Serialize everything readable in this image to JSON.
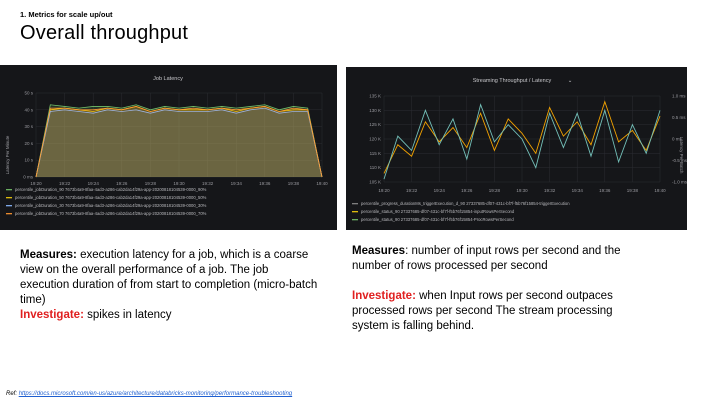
{
  "header": {
    "kicker": "1. Metrics for scale up/out",
    "title": "Overall throughput"
  },
  "panels": [
    {
      "title": "Job Latency",
      "title_suffix": "",
      "y_axis_label": "Latency Per Minute",
      "y_ticks": [
        "50 s",
        "40 s",
        "30 s",
        "20 s",
        "10 s",
        "0 ms"
      ],
      "x_ticks": [
        "19:20",
        "19:22",
        "19:24",
        "19:26",
        "19:28",
        "19:30",
        "19:32",
        "19:34",
        "19:36",
        "19:38",
        "19:40"
      ],
      "legend": [
        {
          "label": "percentile_jobDuration_90 7673b4a9-8faa-4ad3-a286-cab2da14f29a-app-20200818104539-0000_90%",
          "color": "#73bf69"
        },
        {
          "label": "percentile_jobDuration_50 7673b4a9-8faa-4ad3-a286-cab2da14f29a-app-20200818104539-0000_50%",
          "color": "#f2cc0c"
        },
        {
          "label": "percentile_jobDuration_30 7673b4a9-8faa-4ad3-a286-cab2da14f29a-app-20200818104539-0000_30%",
          "color": "#8ab8ff"
        },
        {
          "label": "percentile_jobDuration_70 7673b4a9-8faa-4ad3-a286-cab2da14f29a-app-20200818104539-0000_70%",
          "color": "#ff9830"
        }
      ]
    },
    {
      "title": "Streaming Throughput / Latency",
      "title_suffix": "⌄",
      "y_axis_label_right": "Latency Per Batch",
      "y_ticks": [
        "135 K",
        "130 K",
        "125 K",
        "120 K",
        "115 K",
        "110 K",
        "105 K"
      ],
      "y2_ticks": [
        "1.0 ms",
        "0.5 ms",
        "0 ms",
        "-0.5 ms",
        "-1.0 ms"
      ],
      "x_ticks": [
        "19:20",
        "19:22",
        "19:24",
        "19:26",
        "19:28",
        "19:30",
        "19:32",
        "19:34",
        "19:36",
        "19:38",
        "19:40"
      ],
      "legend": [
        {
          "label": "percentile_progress_durationMs_triggerExecution_d_90 27337685-df07-431c-bf7f-f5b76f15854-triggerExecution",
          "color": "#8a8a8a"
        },
        {
          "label": "percentile_status_90 27337685-df07-431c-bf7f-f5b76f15854-inputRowsPerSecond",
          "color": "#f2cc0c"
        },
        {
          "label": "percentile_status_90 27337685-df07-431c-bf7f-f5b76f15854-ProcRowsPerSecond",
          "color": "#73bf69"
        }
      ]
    }
  ],
  "left_text": {
    "measures_label": "Measures:",
    "measures_body": " execution latency for a job, which is a coarse view on the overall performance of a job. The job execution duration of from start to completion (micro-batch time)",
    "investigate_label": "Investigate:",
    "investigate_body": " spikes in latency"
  },
  "right_text": {
    "measures_label": "Measures",
    "measures_body": ": number of input rows per second and the number of rows processed per second",
    "investigate_label": "Investigate:",
    "investigate_body": " when Input rows per second outpaces processed rows per second The stream processing system is falling behind."
  },
  "footer": {
    "ref_label": "Ref:",
    "ref_link": "https://docs.microsoft.com/en-us/azure/architecture/databricks-monitoring/performance-troubleshooting"
  },
  "chart_data": [
    {
      "type": "area",
      "title": "Job Latency",
      "ylabel": "Latency Per Minute",
      "ylim": [
        0,
        50
      ],
      "y_unit": "s",
      "x": [
        "19:20",
        "19:21",
        "19:22",
        "19:23",
        "19:24",
        "19:25",
        "19:26",
        "19:27",
        "19:28",
        "19:29",
        "19:30",
        "19:31",
        "19:32",
        "19:33",
        "19:34",
        "19:35",
        "19:36",
        "19:37",
        "19:38",
        "19:39",
        "19:40"
      ],
      "series": [
        {
          "name": "percentile_jobDuration_90 7673b4a9-8faa-4ad3-a286-cab2da14f29a-app-20200818104539-0000_90%",
          "values": [
            0,
            43,
            42,
            41,
            42,
            42,
            41,
            43,
            40,
            42,
            41,
            42,
            41,
            42,
            41,
            42,
            43,
            40,
            42,
            41,
            0
          ]
        },
        {
          "name": "percentile_jobDuration_50 7673b4a9-8faa-4ad3-a286-cab2da14f29a-app-20200818104539-0000_50%",
          "values": [
            0,
            40,
            41,
            40,
            39,
            41,
            40,
            42,
            39,
            41,
            40,
            40,
            40,
            41,
            39,
            41,
            42,
            39,
            40,
            40,
            0
          ]
        },
        {
          "name": "percentile_jobDuration_30 7673b4a9-8faa-4ad3-a286-cab2da14f29a-app-20200818104539-0000_30%",
          "values": [
            0,
            39,
            40,
            39,
            38,
            40,
            39,
            40,
            38,
            40,
            39,
            39,
            39,
            40,
            38,
            40,
            41,
            38,
            39,
            39,
            0
          ]
        },
        {
          "name": "percentile_jobDuration_70 7673b4a9-8faa-4ad3-a286-cab2da14f29a-app-20200818104539-0000_70%",
          "values": [
            0,
            41,
            41,
            40,
            40,
            41,
            40,
            42,
            39,
            41,
            40,
            41,
            40,
            41,
            40,
            41,
            42,
            39,
            41,
            40,
            0
          ]
        }
      ]
    },
    {
      "type": "line",
      "title": "Streaming Throughput / Latency",
      "ylim": [
        105000,
        135000
      ],
      "y2lim": [
        -1.0,
        1.0
      ],
      "y2label": "Latency Per Batch",
      "x": [
        "19:20",
        "19:21",
        "19:22",
        "19:23",
        "19:24",
        "19:25",
        "19:26",
        "19:27",
        "19:28",
        "19:29",
        "19:30",
        "19:31",
        "19:32",
        "19:33",
        "19:34",
        "19:35",
        "19:36",
        "19:37",
        "19:38",
        "19:39",
        "19:40"
      ],
      "series": [
        {
          "name": "percentile_status_90 27337685-df07-431c-bf7f-f5b76f15854-inputRowsPerSecond",
          "values": [
            108000,
            118000,
            114000,
            126000,
            119000,
            124000,
            117000,
            129000,
            116000,
            127000,
            122000,
            115000,
            131000,
            121000,
            126000,
            118000,
            133000,
            119000,
            123000,
            116000,
            128000
          ]
        },
        {
          "name": "percentile_status_90 27337685-df07-431c-bf7f-f5b76f15854-ProcRowsPerSecond",
          "values": [
            106000,
            121000,
            116000,
            130000,
            118000,
            127000,
            113000,
            132000,
            119000,
            125000,
            120000,
            110000,
            129000,
            117000,
            129000,
            114000,
            130000,
            112000,
            125000,
            115000,
            130000
          ]
        }
      ]
    }
  ]
}
